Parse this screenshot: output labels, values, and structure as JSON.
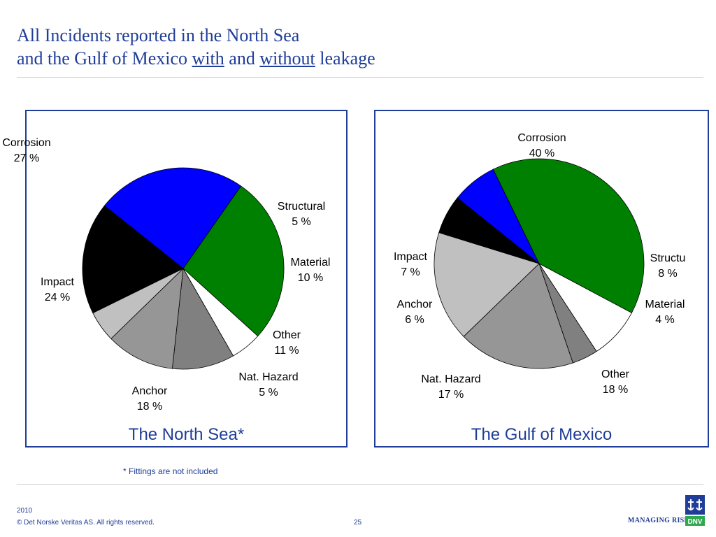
{
  "header": {
    "title_line1": "All Incidents reported in the North Sea",
    "title_line2_part1": "and the Gulf of Mexico ",
    "title_with": "with",
    "title_and": " and ",
    "title_without": "without",
    "title_line2_part2": " leakage"
  },
  "chart_data": [
    {
      "type": "pie",
      "title": "The North Sea*",
      "slices": [
        {
          "label": "Corrosion",
          "pct_label": "27 %",
          "value": 27,
          "color": "#008000"
        },
        {
          "label": "Structural",
          "pct_label": "5 %",
          "value": 5,
          "color": "#ffffff"
        },
        {
          "label": "Material",
          "pct_label": "10 %",
          "value": 10,
          "color": "#808080"
        },
        {
          "label": "Other",
          "pct_label": "11 %",
          "value": 11,
          "color": "#969696"
        },
        {
          "label": "Nat. Hazard",
          "pct_label": "5 %",
          "value": 5,
          "color": "#c0c0c0"
        },
        {
          "label": "Anchor",
          "pct_label": "18 %",
          "value": 18,
          "color": "#000000"
        },
        {
          "label": "Impact",
          "pct_label": "24 %",
          "value": 24,
          "color": "#0000ff"
        }
      ]
    },
    {
      "type": "pie",
      "title": "The Gulf of Mexico",
      "slices": [
        {
          "label": "Corrosion",
          "pct_label": "40 %",
          "value": 40,
          "color": "#008000"
        },
        {
          "label": "Structu",
          "pct_label": "8 %",
          "value": 8,
          "color": "#ffffff"
        },
        {
          "label": "Material",
          "pct_label": "4 %",
          "value": 4,
          "color": "#808080"
        },
        {
          "label": "Other",
          "pct_label": "18 %",
          "value": 18,
          "color": "#969696"
        },
        {
          "label": "Nat. Hazard",
          "pct_label": "17 %",
          "value": 17,
          "color": "#c0c0c0"
        },
        {
          "label": "Anchor",
          "pct_label": "6 %",
          "value": 6,
          "color": "#000000"
        },
        {
          "label": "Impact",
          "pct_label": "7 %",
          "value": 7,
          "color": "#0000ff"
        }
      ]
    }
  ],
  "footnote": "* Fittings are not included",
  "footer": {
    "year": "2010",
    "copyright": "© Det Norske Veritas AS. All rights reserved.",
    "page_number": "25",
    "managing_risk": "MANAGING RISK",
    "logo_text": "DNV"
  }
}
